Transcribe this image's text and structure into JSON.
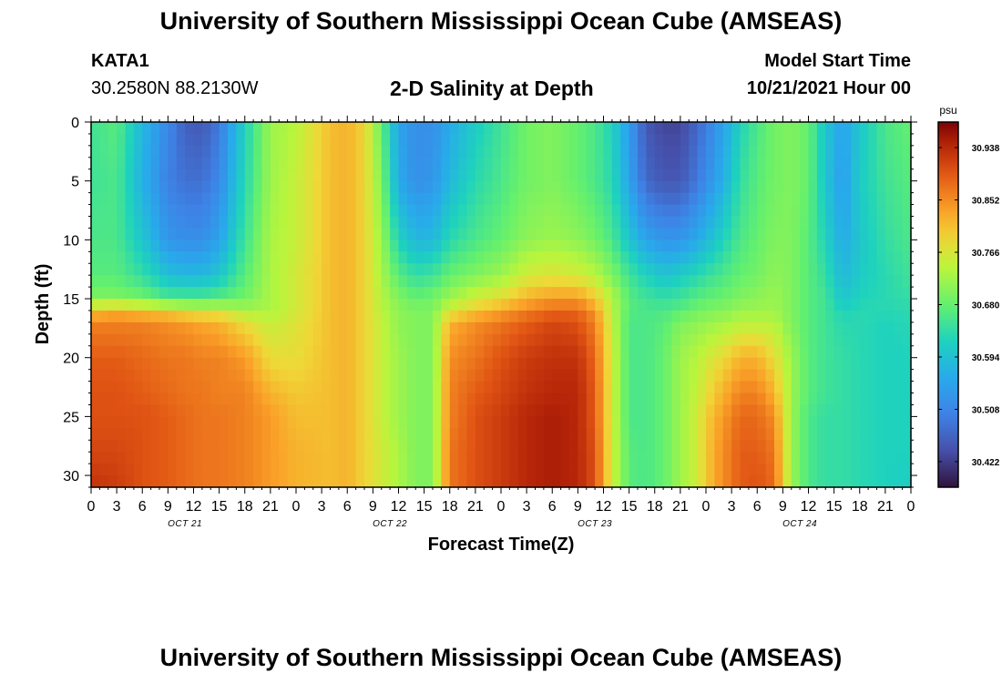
{
  "header": {
    "title": "University of Southern Mississippi Ocean Cube (AMSEAS)",
    "station_id": "KATA1",
    "coordinates": "30.2580N  88.2130W",
    "subtitle": "2-D Salinity at Depth",
    "model_start_label": "Model Start Time",
    "model_start_value": "10/21/2021 Hour 00"
  },
  "footer": {
    "title_repeat": "University of Southern Mississippi Ocean Cube (AMSEAS)"
  },
  "chart_data": {
    "type": "heatmap",
    "title": "2-D Salinity at Depth",
    "xlabel": "Forecast Time(Z)",
    "ylabel": "Depth (ft)",
    "x_range_hours": [
      0,
      96
    ],
    "y_range_ft": [
      0,
      31
    ],
    "x_tick_labels": [
      "0",
      "3",
      "6",
      "9",
      "12",
      "15",
      "18",
      "21",
      "0",
      "3",
      "6",
      "9",
      "12",
      "15",
      "18",
      "21",
      "0",
      "3",
      "6",
      "9",
      "12",
      "15",
      "18",
      "21",
      "0",
      "3",
      "6",
      "9",
      "12",
      "15",
      "18",
      "21",
      "0"
    ],
    "date_labels": [
      {
        "label": "OCT 21",
        "hour": 11
      },
      {
        "label": "OCT 22",
        "hour": 35
      },
      {
        "label": "OCT 23",
        "hour": 59
      },
      {
        "label": "OCT 24",
        "hour": 83
      }
    ],
    "y_ticks": [
      0,
      5,
      10,
      15,
      20,
      25,
      30
    ],
    "colorbar": {
      "unit": "psu",
      "min": 30.38,
      "max": 30.98,
      "tick_values": [
        30.938,
        30.852,
        30.766,
        30.68,
        30.594,
        30.508,
        30.422
      ]
    },
    "profile_hours": [
      0,
      3,
      6,
      9,
      11,
      13,
      15,
      18,
      21,
      24,
      28,
      30,
      32,
      34,
      36,
      38,
      40,
      42,
      45,
      48,
      51,
      54,
      57,
      59,
      61,
      63,
      65,
      67,
      69,
      71,
      73,
      75,
      76,
      78,
      80,
      82,
      84,
      86,
      88,
      90,
      93,
      96
    ],
    "profile_depths_ft": [
      0,
      5,
      10,
      13,
      15,
      16,
      17,
      20,
      23,
      25,
      28,
      31
    ],
    "salinity_psu": [
      [
        30.65,
        30.65,
        30.66,
        30.67,
        30.7,
        30.8,
        30.86,
        30.89,
        30.9,
        30.9,
        30.91,
        30.93
      ],
      [
        30.67,
        30.66,
        30.66,
        30.67,
        30.7,
        30.82,
        30.86,
        30.89,
        30.9,
        30.9,
        30.91,
        30.92
      ],
      [
        30.58,
        30.57,
        30.6,
        30.64,
        30.69,
        30.8,
        30.86,
        30.88,
        30.89,
        30.9,
        30.9,
        30.9
      ],
      [
        30.51,
        30.5,
        30.53,
        30.59,
        30.66,
        30.79,
        30.85,
        30.87,
        30.88,
        30.89,
        30.89,
        30.89
      ],
      [
        30.46,
        30.48,
        30.52,
        30.58,
        30.66,
        30.77,
        30.84,
        30.87,
        30.87,
        30.88,
        30.88,
        30.88
      ],
      [
        30.45,
        30.48,
        30.52,
        30.58,
        30.66,
        30.76,
        30.83,
        30.86,
        30.87,
        30.87,
        30.87,
        30.87
      ],
      [
        30.49,
        30.51,
        30.55,
        30.6,
        30.67,
        30.76,
        30.82,
        30.86,
        30.86,
        30.87,
        30.87,
        30.87
      ],
      [
        30.62,
        30.63,
        30.65,
        30.67,
        30.69,
        30.73,
        30.78,
        30.84,
        30.86,
        30.86,
        30.86,
        30.86
      ],
      [
        30.72,
        30.72,
        30.73,
        30.73,
        30.73,
        30.73,
        30.75,
        30.78,
        30.82,
        30.84,
        30.84,
        30.84
      ],
      [
        30.74,
        30.75,
        30.75,
        30.76,
        30.76,
        30.76,
        30.77,
        30.78,
        30.8,
        30.81,
        30.82,
        30.82
      ],
      [
        30.81,
        30.81,
        30.81,
        30.81,
        30.81,
        30.81,
        30.81,
        30.81,
        30.81,
        30.81,
        30.81,
        30.81
      ],
      [
        30.82,
        30.82,
        30.82,
        30.82,
        30.82,
        30.82,
        30.82,
        30.82,
        30.82,
        30.82,
        30.82,
        30.82
      ],
      [
        30.79,
        30.79,
        30.79,
        30.79,
        30.79,
        30.79,
        30.79,
        30.79,
        30.79,
        30.79,
        30.79,
        30.79
      ],
      [
        30.68,
        30.7,
        30.72,
        30.73,
        30.74,
        30.74,
        30.75,
        30.75,
        30.75,
        30.75,
        30.76,
        30.76
      ],
      [
        30.55,
        30.56,
        30.62,
        30.67,
        30.7,
        30.71,
        30.71,
        30.72,
        30.72,
        30.72,
        30.73,
        30.73
      ],
      [
        30.52,
        30.52,
        30.58,
        30.64,
        30.68,
        30.7,
        30.7,
        30.7,
        30.7,
        30.7,
        30.7,
        30.7
      ],
      [
        30.52,
        30.53,
        30.58,
        30.65,
        30.69,
        30.7,
        30.7,
        30.7,
        30.7,
        30.7,
        30.7,
        30.7
      ],
      [
        30.56,
        30.58,
        30.63,
        30.68,
        30.72,
        30.76,
        30.82,
        30.85,
        30.86,
        30.86,
        30.87,
        30.87
      ],
      [
        30.61,
        30.63,
        30.66,
        30.7,
        30.76,
        30.8,
        30.85,
        30.87,
        30.89,
        30.9,
        30.9,
        30.9
      ],
      [
        30.65,
        30.66,
        30.68,
        30.72,
        30.78,
        30.83,
        30.87,
        30.9,
        30.91,
        30.92,
        30.92,
        30.92
      ],
      [
        30.69,
        30.69,
        30.71,
        30.76,
        30.82,
        30.86,
        30.89,
        30.92,
        30.93,
        30.94,
        30.94,
        30.94
      ],
      [
        30.7,
        30.7,
        30.72,
        30.77,
        30.84,
        30.88,
        30.91,
        30.93,
        30.94,
        30.95,
        30.95,
        30.95
      ],
      [
        30.68,
        30.68,
        30.71,
        30.76,
        30.84,
        30.88,
        30.9,
        30.93,
        30.94,
        30.94,
        30.94,
        30.94
      ],
      [
        30.66,
        30.66,
        30.69,
        30.74,
        30.8,
        30.84,
        30.86,
        30.88,
        30.89,
        30.89,
        30.9,
        30.9
      ],
      [
        30.62,
        30.63,
        30.66,
        30.7,
        30.74,
        30.74,
        30.75,
        30.76,
        30.76,
        30.76,
        30.76,
        30.76
      ],
      [
        30.54,
        30.55,
        30.6,
        30.65,
        30.67,
        30.67,
        30.66,
        30.66,
        30.66,
        30.66,
        30.67,
        30.67
      ],
      [
        30.45,
        30.47,
        30.55,
        30.62,
        30.65,
        30.66,
        30.66,
        30.66,
        30.66,
        30.66,
        30.66,
        30.66
      ],
      [
        30.43,
        30.45,
        30.53,
        30.6,
        30.64,
        30.66,
        30.67,
        30.68,
        30.68,
        30.68,
        30.68,
        30.68
      ],
      [
        30.43,
        30.45,
        30.53,
        30.61,
        30.65,
        30.67,
        30.7,
        30.72,
        30.72,
        30.72,
        30.72,
        30.72
      ],
      [
        30.47,
        30.49,
        30.56,
        30.63,
        30.67,
        30.69,
        30.71,
        30.74,
        30.75,
        30.76,
        30.76,
        30.76
      ],
      [
        30.52,
        30.54,
        30.6,
        30.65,
        30.68,
        30.7,
        30.72,
        30.77,
        30.8,
        30.82,
        30.83,
        30.83
      ],
      [
        30.58,
        30.6,
        30.64,
        30.67,
        30.69,
        30.71,
        30.73,
        30.8,
        30.84,
        30.86,
        30.87,
        30.87
      ],
      [
        30.62,
        30.64,
        30.66,
        30.68,
        30.7,
        30.72,
        30.74,
        30.82,
        30.86,
        30.88,
        30.89,
        30.89
      ],
      [
        30.66,
        30.67,
        30.68,
        30.69,
        30.71,
        30.72,
        30.74,
        30.82,
        30.86,
        30.88,
        30.89,
        30.9
      ],
      [
        30.69,
        30.69,
        30.7,
        30.71,
        30.72,
        30.72,
        30.74,
        30.78,
        30.82,
        30.85,
        30.87,
        30.88
      ],
      [
        30.7,
        30.7,
        30.7,
        30.7,
        30.7,
        30.7,
        30.7,
        30.72,
        30.72,
        30.72,
        30.72,
        30.72
      ],
      [
        30.68,
        30.68,
        30.67,
        30.67,
        30.67,
        30.67,
        30.67,
        30.67,
        30.67,
        30.66,
        30.66,
        30.66
      ],
      [
        30.6,
        30.6,
        30.62,
        30.64,
        30.65,
        30.65,
        30.65,
        30.65,
        30.65,
        30.64,
        30.64,
        30.64
      ],
      [
        30.55,
        30.54,
        30.56,
        30.58,
        30.6,
        30.62,
        30.63,
        30.64,
        30.64,
        30.64,
        30.64,
        30.64
      ],
      [
        30.6,
        30.61,
        30.6,
        30.61,
        30.62,
        30.63,
        30.63,
        30.63,
        30.63,
        30.63,
        30.63,
        30.63
      ],
      [
        30.66,
        30.65,
        30.64,
        30.63,
        30.63,
        30.63,
        30.62,
        30.62,
        30.62,
        30.62,
        30.62,
        30.62
      ],
      [
        30.68,
        30.67,
        30.66,
        30.65,
        30.64,
        30.63,
        30.63,
        30.62,
        30.62,
        30.62,
        30.62,
        30.61
      ]
    ]
  }
}
